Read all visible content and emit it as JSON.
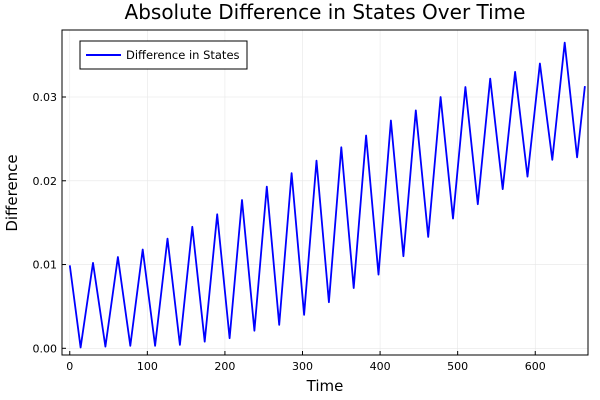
{
  "chart_data": {
    "type": "line",
    "title": "Absolute Difference in States Over Time",
    "xlabel": "Time",
    "ylabel": "Difference",
    "xlim": [
      -10,
      668
    ],
    "ylim": [
      -0.0008,
      0.038
    ],
    "xticks": [
      0,
      100,
      200,
      300,
      400,
      500,
      600
    ],
    "xtick_labels": [
      "0",
      "100",
      "200",
      "300",
      "400",
      "500",
      "600"
    ],
    "yticks": [
      0,
      0.01,
      0.02,
      0.03
    ],
    "ytick_labels": [
      "0.00",
      "0.01",
      "0.02",
      "0.03"
    ],
    "grid": true,
    "legend_position": "top-left",
    "series": [
      {
        "name": "Difference in States",
        "color": "#0000ff",
        "x": [
          0,
          14,
          30,
          46,
          62,
          78,
          94,
          110,
          126,
          142,
          158,
          174,
          190,
          206,
          222,
          238,
          254,
          270,
          286,
          302,
          318,
          334,
          350,
          366,
          382,
          398,
          414,
          430,
          446,
          462,
          478,
          494,
          510,
          526,
          542,
          558,
          574,
          590,
          606,
          622,
          638,
          654,
          664
        ],
        "y": [
          0.0099,
          0.0001,
          0.0102,
          0.0002,
          0.0109,
          0.0003,
          0.0118,
          0.0003,
          0.0131,
          0.0004,
          0.0145,
          0.0008,
          0.016,
          0.0012,
          0.0177,
          0.0021,
          0.0193,
          0.0028,
          0.0209,
          0.004,
          0.0224,
          0.0055,
          0.024,
          0.0072,
          0.0254,
          0.0088,
          0.0272,
          0.011,
          0.0284,
          0.0133,
          0.03,
          0.0155,
          0.0312,
          0.0172,
          0.0322,
          0.019,
          0.033,
          0.0205,
          0.034,
          0.0225,
          0.0365,
          0.0228,
          0.0313
        ]
      }
    ]
  }
}
